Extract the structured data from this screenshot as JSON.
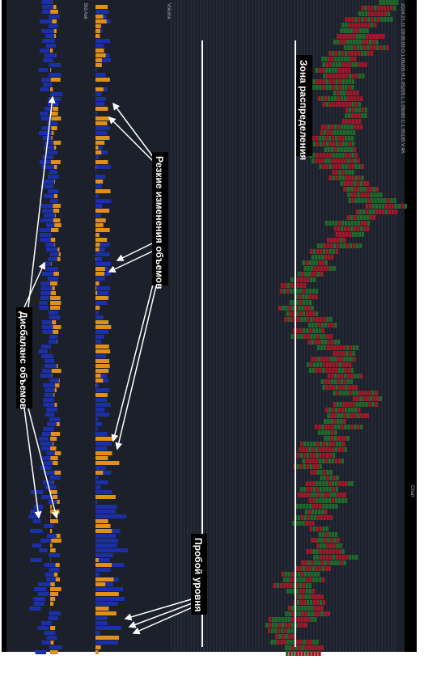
{
  "header": {
    "info": "2024.21.11 19:05:00 O:1.05205 H:1.05205 L:1.05090 C:1.05135 V:4K"
  },
  "panels": {
    "bid_ask": "Bid Ask",
    "volume": "Volume",
    "chart": "Chart"
  },
  "annotations": {
    "distribution": "Зона распределения",
    "sharp_changes": "Резкие изменения объемов",
    "imbalance": "Дисбаланс объемов",
    "breakout": "Пробой уровня"
  }
}
